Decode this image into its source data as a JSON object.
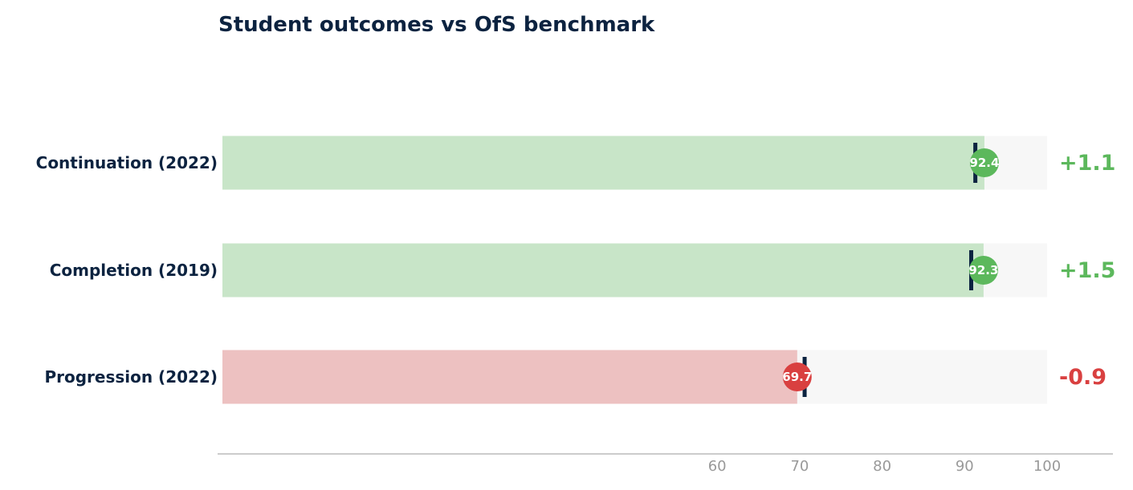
{
  "chart_data": {
    "type": "bar",
    "title": "Student outcomes vs OfS benchmark",
    "categories": [
      "Continuation (2022)",
      "Completion (2019)",
      "Progression (2022)"
    ],
    "values": [
      92.4,
      92.3,
      69.7
    ],
    "benchmarks": [
      91.3,
      90.8,
      70.6
    ],
    "value_labels": [
      "92.4",
      "92.3",
      "69.7"
    ],
    "difference_labels": [
      "+1.1",
      "+1.5",
      "-0.9"
    ],
    "xlim": [
      0,
      100
    ],
    "xticks": [
      60,
      70,
      80,
      90,
      100
    ],
    "xlabel": "",
    "ylabel": "",
    "grid": false,
    "legend": "none"
  },
  "colors": {
    "title": "#0c2340",
    "category_label": "#0c2340",
    "benchmark_marker": "#0c2340",
    "track": "#f7f7f7",
    "above_fill": "#c8e5c8",
    "above_dot": "#5cb85c",
    "below_fill": "#edc1c1",
    "below_dot": "#d94040",
    "axis_line": "#cccccc",
    "tick_text": "#999999"
  }
}
